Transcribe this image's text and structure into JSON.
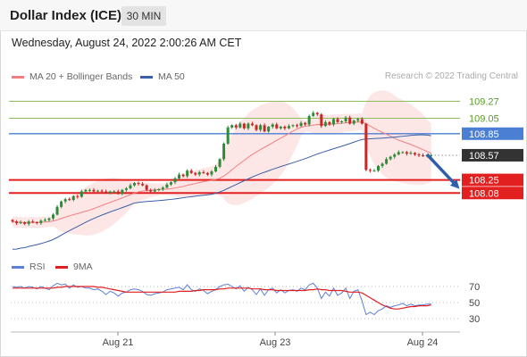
{
  "header": {
    "title": "Dollar Index (ICE)",
    "interval": "30 MIN",
    "datetime": "Wednesday, August 24, 2022 2:00:26 AM CET"
  },
  "legend": {
    "ma20": "MA 20 + Bollinger Bands",
    "ma50": "MA 50",
    "credit": "Research © 2022 Trading Central",
    "rsi": "RSI",
    "ma9": "9MA"
  },
  "colors": {
    "ma20": "#f08080",
    "bollinger_fill": "#fde2e2",
    "ma50": "#3a5fa8",
    "resistance": "#8fbf5a",
    "pivot": "#4a7fd4",
    "support": "#e32020",
    "current": "#333333",
    "candle_up": "#2e8b3a",
    "candle_down": "#c62828",
    "rsi": "#5b7fd9",
    "rsi_ma": "#e02020",
    "arrow": "#2f5fa8"
  },
  "chart_data": [
    {
      "type": "candlestick",
      "ylim": [
        107.55,
        109.45
      ],
      "x_ticks": [
        "Aug 21",
        "Aug 23",
        "Aug 24"
      ],
      "levels": [
        {
          "name": "resistance",
          "value": 109.27,
          "label": "109.27",
          "style": "resistance"
        },
        {
          "name": "resistance",
          "value": 109.05,
          "label": "109.05",
          "style": "resistance"
        },
        {
          "name": "pivot",
          "value": 108.85,
          "label": "108.85",
          "style": "pivot"
        },
        {
          "name": "current",
          "value": 108.57,
          "label": "108.57",
          "style": "current"
        },
        {
          "name": "support",
          "value": 108.25,
          "label": "108.25",
          "style": "support"
        },
        {
          "name": "support",
          "value": 108.08,
          "label": "108.08",
          "style": "support"
        }
      ],
      "close": [
        107.71,
        107.69,
        107.7,
        107.68,
        107.71,
        107.7,
        107.69,
        107.72,
        107.73,
        107.75,
        107.8,
        107.9,
        107.97,
        108.0,
        107.99,
        108.04,
        108.03,
        108.1,
        108.12,
        108.12,
        108.1,
        108.11,
        108.1,
        108.08,
        108.1,
        108.1,
        108.07,
        108.12,
        108.14,
        108.18,
        108.21,
        108.2,
        108.18,
        108.12,
        108.1,
        108.12,
        108.13,
        108.15,
        108.19,
        108.22,
        108.27,
        108.32,
        108.3,
        108.37,
        108.34,
        108.32,
        108.35,
        108.34,
        108.32,
        108.36,
        108.42,
        108.52,
        108.72,
        108.93,
        108.96,
        108.93,
        108.98,
        108.92,
        108.98,
        108.96,
        108.9,
        108.96,
        108.88,
        108.94,
        108.97,
        108.92,
        108.94,
        108.92,
        108.95,
        108.96,
        108.95,
        108.99,
        108.97,
        109.08,
        109.12,
        109.1,
        108.95,
        109.0,
        108.97,
        109.04,
        109.0,
        109.01,
        109.06,
        108.98,
        109.02,
        109.04,
        108.98,
        108.38,
        108.37,
        108.37,
        108.43,
        108.46,
        108.52,
        108.55,
        108.58,
        108.61,
        108.61,
        108.59,
        108.6,
        108.58,
        108.57,
        108.56,
        108.57,
        108.57
      ]
    },
    {
      "type": "line",
      "ylim": [
        20,
        80
      ],
      "y_ticks": [
        70,
        50,
        30
      ],
      "series": [
        {
          "name": "RSI",
          "values": [
            70,
            69,
            70,
            68,
            70,
            69,
            67,
            70,
            68,
            66,
            71,
            74,
            72,
            73,
            68,
            72,
            69,
            70,
            68,
            68,
            66,
            67,
            64,
            60,
            64,
            62,
            58,
            62,
            63,
            66,
            67,
            66,
            64,
            60,
            59,
            61,
            62,
            63,
            66,
            67,
            68,
            69,
            66,
            72,
            66,
            64,
            67,
            65,
            61,
            64,
            66,
            70,
            72,
            73,
            70,
            67,
            71,
            64,
            69,
            66,
            60,
            67,
            59,
            66,
            68,
            62,
            66,
            62,
            65,
            66,
            64,
            68,
            66,
            72,
            74,
            68,
            55,
            63,
            58,
            68,
            59,
            62,
            68,
            55,
            64,
            66,
            52,
            35,
            38,
            35,
            40,
            42,
            46,
            44,
            46,
            47,
            49,
            46,
            48,
            46,
            47,
            47,
            48,
            48
          ]
        },
        {
          "name": "9MA",
          "values": [
            68,
            68,
            68,
            68,
            68,
            68,
            68,
            68,
            68,
            68,
            68,
            69,
            69,
            70,
            70,
            70,
            70,
            70,
            70,
            70,
            70,
            69,
            69,
            68,
            67,
            66,
            65,
            64,
            63,
            63,
            63,
            63,
            63,
            63,
            63,
            63,
            63,
            63,
            63,
            63,
            63,
            64,
            64,
            64,
            64,
            65,
            65,
            66,
            66,
            66,
            66,
            67,
            67,
            68,
            68,
            68,
            68,
            68,
            68,
            67,
            67,
            67,
            66,
            66,
            66,
            65,
            65,
            65,
            65,
            65,
            65,
            65,
            65,
            66,
            66,
            67,
            66,
            66,
            65,
            65,
            65,
            65,
            64,
            63,
            63,
            63,
            62,
            59,
            56,
            53,
            50,
            47,
            45,
            43,
            42,
            42,
            43,
            44,
            45,
            45,
            46,
            46,
            46,
            47
          ]
        }
      ]
    }
  ]
}
